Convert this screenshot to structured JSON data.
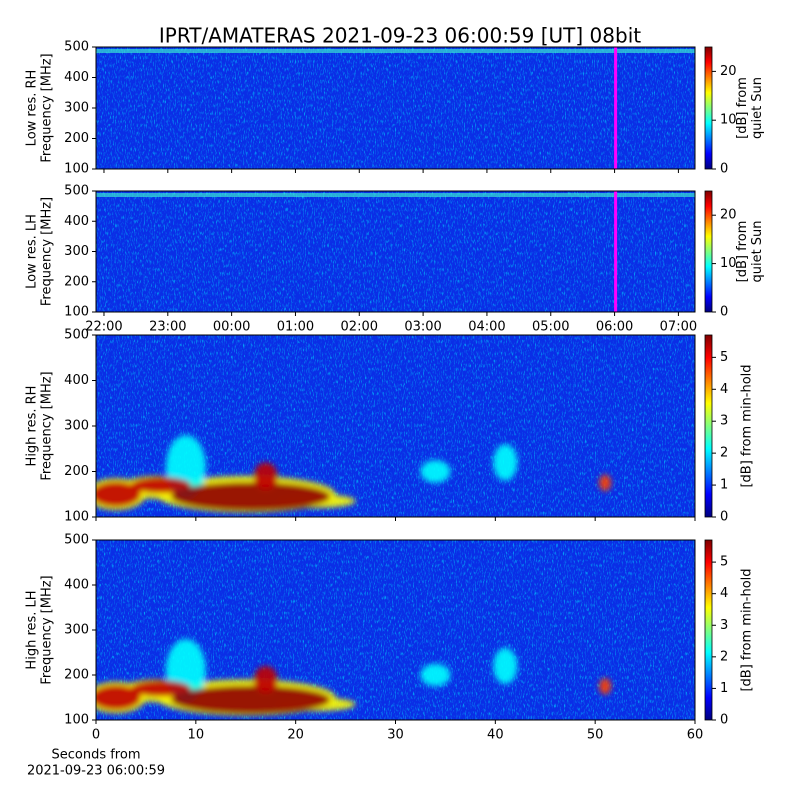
{
  "title": "IPRT/AMATERAS 2021-09-23 06:00:59 [UT]   08bit",
  "xlabel": [
    "Seconds from",
    "2021-09-23 06:00:59"
  ],
  "colormap": "jet",
  "chart_data": [
    {
      "type": "heatmap",
      "ylabel": [
        "Low res. RH",
        "Frequency [MHz]"
      ],
      "ylim": [
        100,
        500
      ],
      "yticks": [
        100,
        200,
        300,
        400,
        500
      ],
      "xlim": [
        21.875,
        31.26
      ],
      "show_xticklabels": false,
      "xticks": [
        {
          "value": 22,
          "label": "22:00"
        },
        {
          "value": 23,
          "label": "23:00"
        },
        {
          "value": 24,
          "label": "00:00"
        },
        {
          "value": 25,
          "label": "01:00"
        },
        {
          "value": 26,
          "label": "02:00"
        },
        {
          "value": 27,
          "label": "03:00"
        },
        {
          "value": 28,
          "label": "04:00"
        },
        {
          "value": 29,
          "label": "05:00"
        },
        {
          "value": 30,
          "label": "06:00"
        },
        {
          "value": 31,
          "label": "07:00"
        }
      ],
      "marker_x": 30.016,
      "marker_color": "#ff00ff",
      "colorbar": {
        "label": [
          "[dB] from",
          "quiet Sun"
        ],
        "lim": [
          0,
          25
        ],
        "ticks": [
          0,
          10,
          20
        ]
      }
    },
    {
      "type": "heatmap",
      "ylabel": [
        "Low res. LH",
        "Frequency [MHz]"
      ],
      "ylim": [
        100,
        500
      ],
      "yticks": [
        100,
        200,
        300,
        400,
        500
      ],
      "xlim": [
        21.875,
        31.26
      ],
      "show_xticklabels": true,
      "xticks": [
        {
          "value": 22,
          "label": "22:00"
        },
        {
          "value": 23,
          "label": "23:00"
        },
        {
          "value": 24,
          "label": "00:00"
        },
        {
          "value": 25,
          "label": "01:00"
        },
        {
          "value": 26,
          "label": "02:00"
        },
        {
          "value": 27,
          "label": "03:00"
        },
        {
          "value": 28,
          "label": "04:00"
        },
        {
          "value": 29,
          "label": "05:00"
        },
        {
          "value": 30,
          "label": "06:00"
        },
        {
          "value": 31,
          "label": "07:00"
        }
      ],
      "marker_x": 30.016,
      "marker_color": "#ff00ff",
      "colorbar": {
        "label": [
          "[dB] from",
          "quiet Sun"
        ],
        "lim": [
          0,
          25
        ],
        "ticks": [
          0,
          10,
          20
        ]
      }
    },
    {
      "type": "heatmap",
      "ylabel": [
        "High res. RH",
        "Frequency [MHz]"
      ],
      "ylim": [
        100,
        500
      ],
      "yticks": [
        100,
        200,
        300,
        400,
        500
      ],
      "xlim": [
        0,
        60
      ],
      "show_xticklabels": false,
      "xticks": [
        0,
        10,
        20,
        30,
        40,
        50,
        60
      ],
      "colorbar": {
        "label": [
          "[dB] from min-hold"
        ],
        "lim": [
          0,
          5.7
        ],
        "ticks": [
          0,
          1,
          2,
          3,
          4,
          5
        ]
      }
    },
    {
      "type": "heatmap",
      "ylabel": [
        "High res. LH",
        "Frequency [MHz]"
      ],
      "ylim": [
        100,
        500
      ],
      "yticks": [
        100,
        200,
        300,
        400,
        500
      ],
      "xlim": [
        0,
        60
      ],
      "show_xticklabels": true,
      "xticks": [
        0,
        10,
        20,
        30,
        40,
        50,
        60
      ],
      "colorbar": {
        "label": [
          "[dB] from min-hold"
        ],
        "lim": [
          0,
          5.7
        ],
        "ticks": [
          0,
          1,
          2,
          3,
          4,
          5
        ]
      }
    }
  ]
}
